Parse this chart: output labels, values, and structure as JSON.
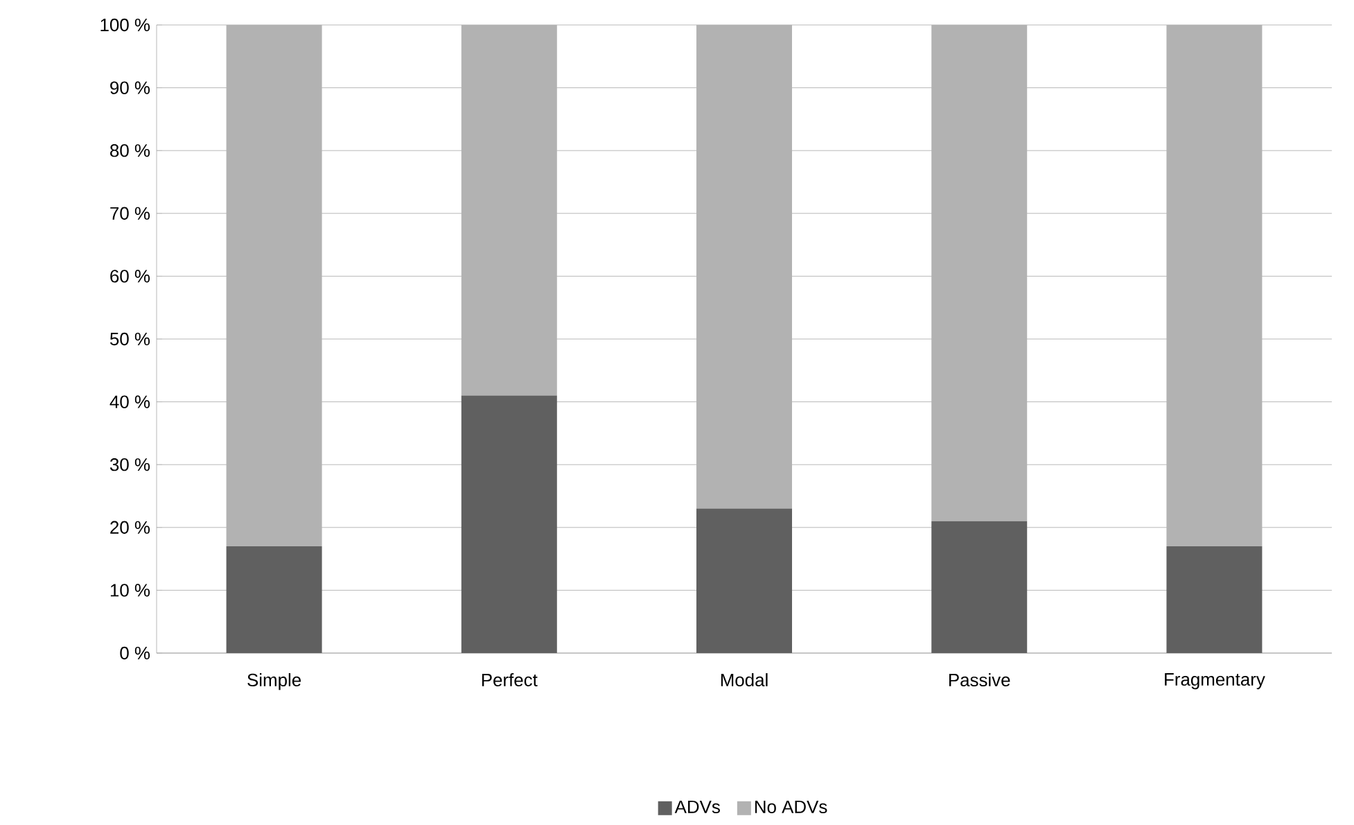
{
  "chart_data": {
    "type": "bar",
    "stacked": true,
    "categories": [
      "Simple",
      "Perfect",
      "Modal",
      "Passive",
      "Fragmentary"
    ],
    "series": [
      {
        "name": "ADVs",
        "color": "#606060",
        "values": [
          17,
          41,
          23,
          21,
          17
        ]
      },
      {
        "name": "No ADVs",
        "color": "#b2b2b2",
        "values": [
          83,
          59,
          77,
          79,
          83
        ]
      }
    ],
    "ylim": [
      0,
      100
    ],
    "yticks": [
      {
        "value": 0,
        "label": "0 %"
      },
      {
        "value": 10,
        "label": "10 %"
      },
      {
        "value": 20,
        "label": "20 %"
      },
      {
        "value": 30,
        "label": "30 %"
      },
      {
        "value": 40,
        "label": "40 %"
      },
      {
        "value": 50,
        "label": "50 %"
      },
      {
        "value": 60,
        "label": "60 %"
      },
      {
        "value": 70,
        "label": "70 %"
      },
      {
        "value": 80,
        "label": "80 %"
      },
      {
        "value": 90,
        "label": "90 %"
      },
      {
        "value": 100,
        "label": "100 %"
      }
    ],
    "grid": "y",
    "legend": "bottom"
  }
}
